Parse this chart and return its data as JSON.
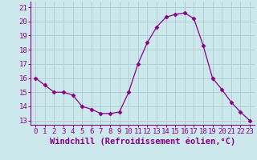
{
  "x": [
    0,
    1,
    2,
    3,
    4,
    5,
    6,
    7,
    8,
    9,
    10,
    11,
    12,
    13,
    14,
    15,
    16,
    17,
    18,
    19,
    20,
    21,
    22,
    23
  ],
  "y": [
    16.0,
    15.5,
    15.0,
    15.0,
    14.8,
    14.0,
    13.8,
    13.5,
    13.5,
    13.6,
    15.0,
    17.0,
    18.5,
    19.6,
    20.3,
    20.5,
    20.6,
    20.2,
    18.3,
    16.0,
    15.2,
    14.3,
    13.6,
    13.0
  ],
  "line_color": "#880088",
  "marker": "D",
  "marker_size": 2.5,
  "bg_color": "#cce8ec",
  "grid_color": "#aacccc",
  "xlabel": "Windchill (Refroidissement éolien,°C)",
  "xlabel_fontsize": 7.5,
  "tick_fontsize": 6.5,
  "ylim": [
    12.7,
    21.4
  ],
  "xlim": [
    -0.5,
    23.5
  ],
  "yticks": [
    13,
    14,
    15,
    16,
    17,
    18,
    19,
    20,
    21
  ],
  "xticks": [
    0,
    1,
    2,
    3,
    4,
    5,
    6,
    7,
    8,
    9,
    10,
    11,
    12,
    13,
    14,
    15,
    16,
    17,
    18,
    19,
    20,
    21,
    22,
    23
  ]
}
